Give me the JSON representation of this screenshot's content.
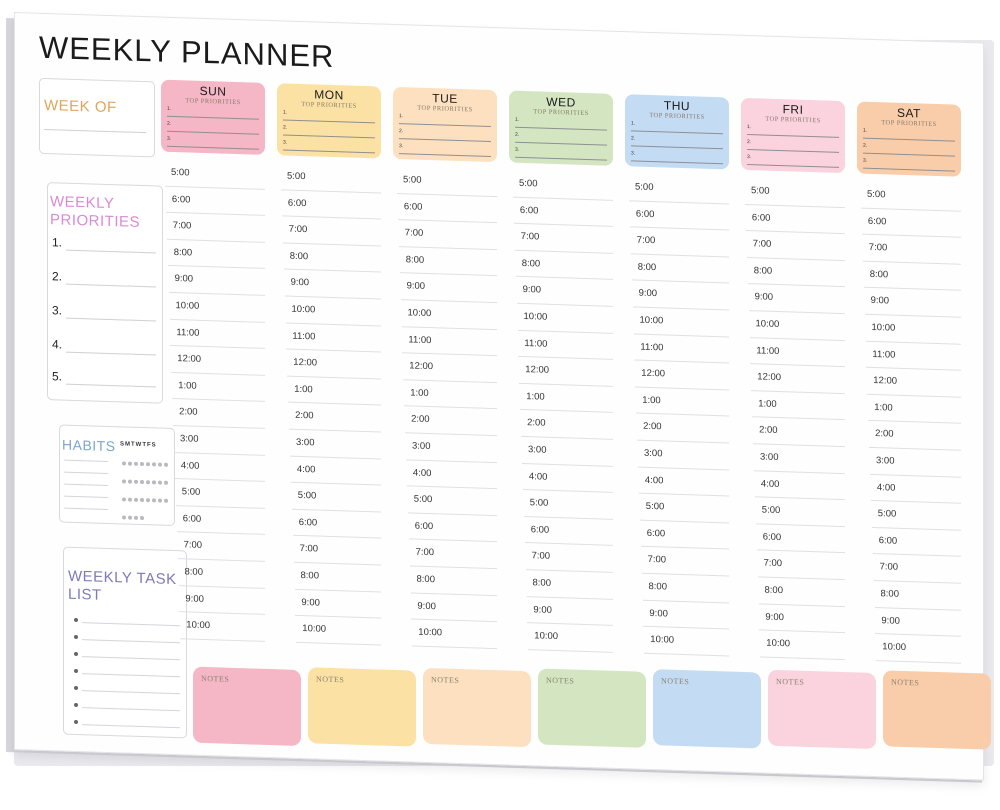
{
  "title": "WEEKLY PLANNER",
  "week_of": "WEEK OF",
  "weekly_priorities": {
    "heading": "WEEKLY PRIORITIES",
    "numbers": [
      "1.",
      "2.",
      "3.",
      "4.",
      "5."
    ]
  },
  "habits": {
    "heading": "HABITS",
    "days": "SMTWTFS"
  },
  "task_list": {
    "heading": "WEEKLY TASK LIST"
  },
  "top_priorities_label": "TOP PRIORITIES",
  "priority_numbers": [
    "1.",
    "2.",
    "3."
  ],
  "notes_label": "NOTES",
  "times": [
    "5:00",
    "6:00",
    "7:00",
    "8:00",
    "9:00",
    "10:00",
    "11:00",
    "12:00",
    "1:00",
    "2:00",
    "3:00",
    "4:00",
    "5:00",
    "6:00",
    "7:00",
    "8:00",
    "9:00",
    "10:00"
  ],
  "days": [
    {
      "name": "SUN",
      "color": "#f5b6c6"
    },
    {
      "name": "MON",
      "color": "#fbe2a4"
    },
    {
      "name": "TUE",
      "color": "#fde0c0"
    },
    {
      "name": "WED",
      "color": "#d3e6c1"
    },
    {
      "name": "THU",
      "color": "#c4dbf4"
    },
    {
      "name": "FRI",
      "color": "#fbd3df"
    },
    {
      "name": "SAT",
      "color": "#f9cdaa"
    }
  ]
}
